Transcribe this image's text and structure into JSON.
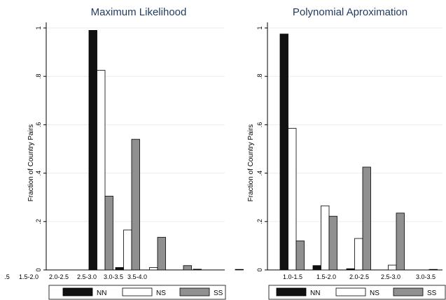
{
  "chart_data": [
    {
      "type": "bar",
      "title": "Maximum Likelihood",
      "ylabel": "Fraction of Country Pairs",
      "ylim": [
        0,
        1
      ],
      "yticks": [
        0,
        0.2,
        0.4,
        0.6,
        0.8,
        1
      ],
      "ytick_labels": [
        "0",
        ".2",
        ".4",
        ".6",
        ".8",
        "1"
      ],
      "categories": [
        ".5",
        "1.5-2.0",
        "2.0-2.5",
        "2.5-3.0",
        "3.0-3.5",
        "3.5-4.0",
        "",
        ""
      ],
      "series": [
        {
          "name": "NN",
          "color": "#111111",
          "values": [
            null,
            null,
            0.99,
            0.01,
            0,
            0,
            0.003,
            0
          ]
        },
        {
          "name": "NS",
          "color": "#ffffff",
          "values": [
            null,
            null,
            0.825,
            0.165,
            0.01,
            0,
            0,
            0
          ]
        },
        {
          "name": "SS",
          "color": "#909090",
          "values": [
            null,
            null,
            0.305,
            0.54,
            0.135,
            0.018,
            0,
            0.002
          ]
        }
      ],
      "legend_position": "bottom"
    },
    {
      "type": "bar",
      "title": "Polynomial Aproximation",
      "ylabel": "Fraction of Country Pairs",
      "ylim": [
        0,
        1
      ],
      "yticks": [
        0,
        0.2,
        0.4,
        0.6,
        0.8,
        1
      ],
      "ytick_labels": [
        "0",
        ".2",
        ".4",
        ".6",
        ".8",
        "1"
      ],
      "categories": [
        "1.0-1.5",
        "1.5-2.0",
        "2.0-2.5",
        "2.5-3.0",
        "3.0-3.5"
      ],
      "series": [
        {
          "name": "NN",
          "color": "#111111",
          "values": [
            0.975,
            0.018,
            0.005,
            0,
            0
          ]
        },
        {
          "name": "NS",
          "color": "#ffffff",
          "values": [
            0.585,
            0.265,
            0.13,
            0.02,
            0
          ]
        },
        {
          "name": "SS",
          "color": "#909090",
          "values": [
            0.12,
            0.222,
            0.425,
            0.235,
            0.002
          ]
        }
      ],
      "legend_position": "bottom"
    }
  ]
}
